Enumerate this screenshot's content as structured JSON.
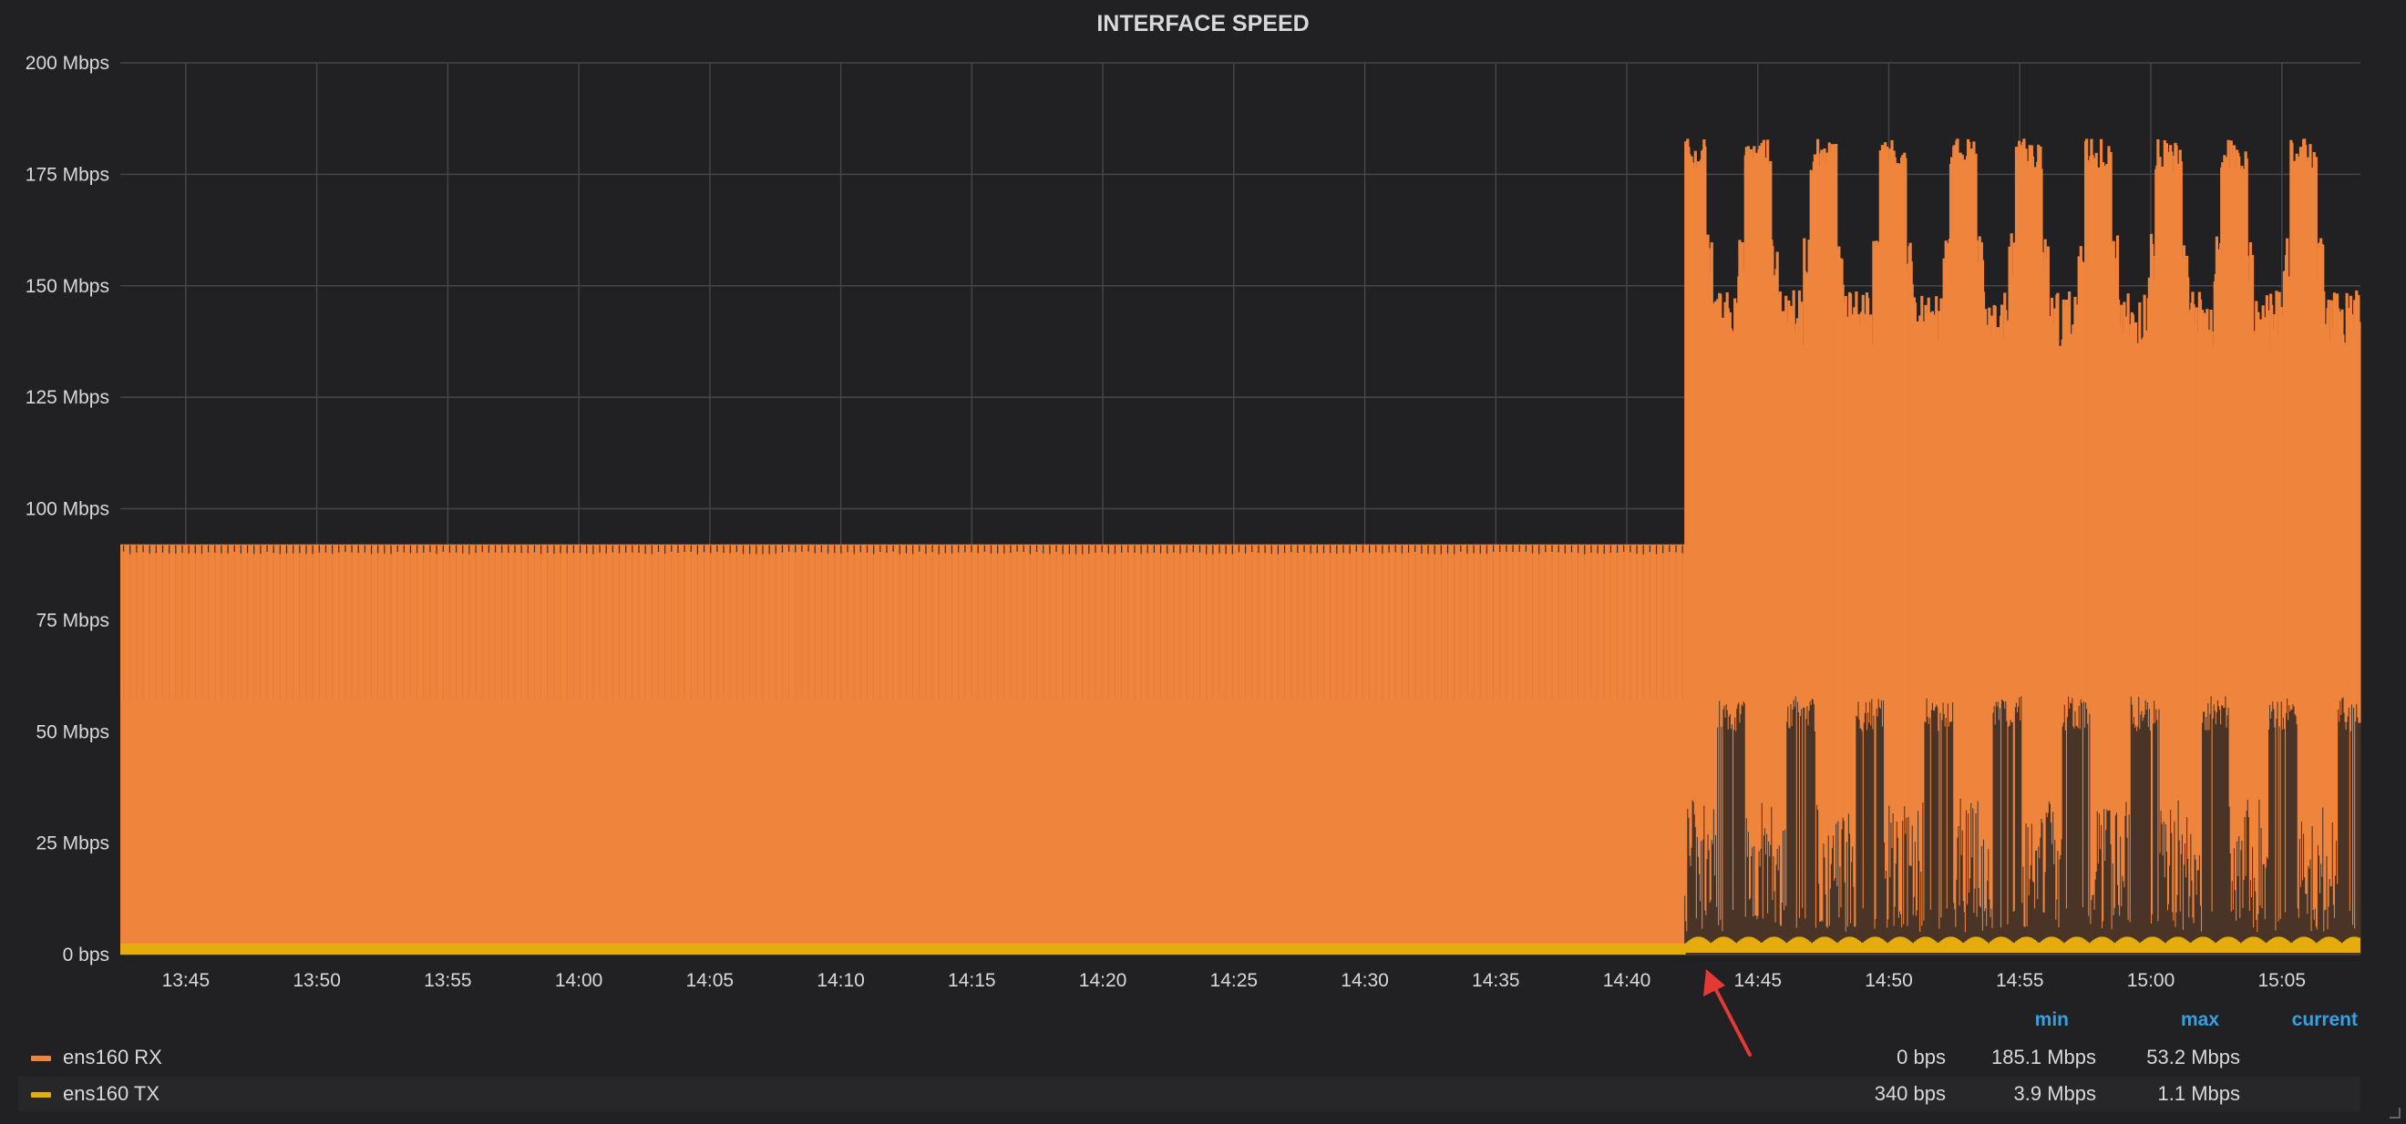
{
  "chart_data": {
    "type": "area",
    "title": "INTERFACE SPEED",
    "ylim": [
      0,
      200
    ],
    "yunit": "Mbps",
    "yticks": [
      "0 bps",
      "25 Mbps",
      "50 Mbps",
      "75 Mbps",
      "100 Mbps",
      "125 Mbps",
      "150 Mbps",
      "175 Mbps",
      "200 Mbps"
    ],
    "xticks": [
      "13:45",
      "13:50",
      "13:55",
      "14:00",
      "14:05",
      "14:10",
      "14:15",
      "14:20",
      "14:25",
      "14:30",
      "14:35",
      "14:40",
      "14:45",
      "14:50",
      "14:55",
      "15:00",
      "15:05"
    ],
    "xrange": [
      "13:42:30",
      "15:08:00"
    ],
    "grid": true,
    "series": [
      {
        "name": "ens160 RX",
        "color": "#ef843c",
        "phases": [
          {
            "from": "13:42:30",
            "to": "14:42:15",
            "upper": 92,
            "lower": 0
          },
          {
            "from": "14:42:15",
            "to": "15:08:00",
            "upper": 145,
            "lower": 5,
            "burst_peak": 183,
            "burst_times": [
              "14:42:30",
              "14:45:00",
              "14:47:30",
              "14:50:10",
              "14:52:50",
              "14:55:20",
              "14:58:00",
              "15:00:40",
              "15:03:10",
              "15:05:50"
            ]
          }
        ]
      },
      {
        "name": "ens160 TX",
        "color": "#e5ac0e",
        "phases": [
          {
            "from": "13:42:30",
            "to": "14:42:15",
            "upper": 2.5,
            "lower": 0
          },
          {
            "from": "14:42:15",
            "to": "15:08:00",
            "upper": 3.9,
            "lower": 0.5
          }
        ]
      }
    ],
    "legend": {
      "placement": "bottom",
      "columns": [
        "min",
        "max",
        "current"
      ],
      "rows": [
        {
          "name": "ens160 RX",
          "color": "#ef843c",
          "min": "0 bps",
          "max": "185.1 Mbps",
          "current": "53.2 Mbps"
        },
        {
          "name": "ens160 TX",
          "color": "#e5ac0e",
          "min": "340 bps",
          "max": "3.9 Mbps",
          "current": "1.1 Mbps"
        }
      ]
    }
  },
  "annotation": {
    "type": "arrow",
    "color": "#e53935",
    "points_to": "14:43"
  }
}
